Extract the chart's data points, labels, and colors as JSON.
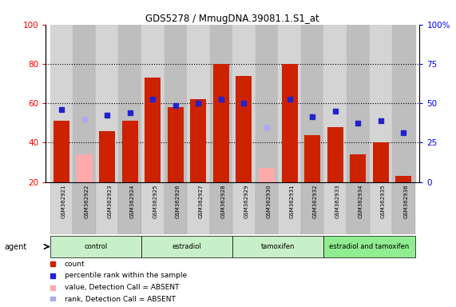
{
  "title": "GDS5278 / MmugDNA.39081.1.S1_at",
  "samples": [
    "GSM362921",
    "GSM362922",
    "GSM362923",
    "GSM362924",
    "GSM362925",
    "GSM362926",
    "GSM362927",
    "GSM362928",
    "GSM362929",
    "GSM362930",
    "GSM362931",
    "GSM362932",
    "GSM362933",
    "GSM362934",
    "GSM362935",
    "GSM362936"
  ],
  "counts": [
    51,
    34,
    46,
    51,
    73,
    58,
    62,
    80,
    74,
    27,
    80,
    44,
    48,
    34,
    40,
    23
  ],
  "ranks": [
    57,
    52,
    54,
    55,
    62,
    59,
    60,
    62,
    60,
    48,
    62,
    53,
    56,
    50,
    51,
    45
  ],
  "absent_count": [
    false,
    true,
    false,
    false,
    false,
    false,
    false,
    false,
    false,
    true,
    false,
    false,
    false,
    false,
    false,
    false
  ],
  "absent_rank": [
    false,
    true,
    false,
    false,
    false,
    false,
    false,
    false,
    false,
    true,
    false,
    false,
    false,
    false,
    false,
    false
  ],
  "groups": [
    {
      "label": "control",
      "start": 0,
      "end": 4
    },
    {
      "label": "estradiol",
      "start": 4,
      "end": 8
    },
    {
      "label": "tamoxifen",
      "start": 8,
      "end": 12
    },
    {
      "label": "estradiol and tamoxifen",
      "start": 12,
      "end": 16
    }
  ],
  "group_colors": [
    "#c8f0c8",
    "#c8f0c8",
    "#c8f0c8",
    "#90ee90"
  ],
  "bar_color_present": "#cc2200",
  "bar_color_absent": "#ffaaaa",
  "rank_color_present": "#2222cc",
  "rank_color_absent": "#aaaaee",
  "col_bg_even": "#d8d8d8",
  "col_bg_odd": "#c8c8c8",
  "ylim_left": [
    20,
    100
  ],
  "ylim_right": [
    0,
    100
  ],
  "yticks_left": [
    20,
    40,
    60,
    80,
    100
  ],
  "yticks_right": [
    0,
    25,
    50,
    75,
    100
  ],
  "yticklabels_right": [
    "0",
    "25",
    "50",
    "75",
    "100%"
  ],
  "legend_items": [
    {
      "color": "#cc2200",
      "label": "count"
    },
    {
      "color": "#2222cc",
      "label": "percentile rank within the sample"
    },
    {
      "color": "#ffaaaa",
      "label": "value, Detection Call = ABSENT"
    },
    {
      "color": "#aaaaee",
      "label": "rank, Detection Call = ABSENT"
    }
  ],
  "agent_label": "agent"
}
